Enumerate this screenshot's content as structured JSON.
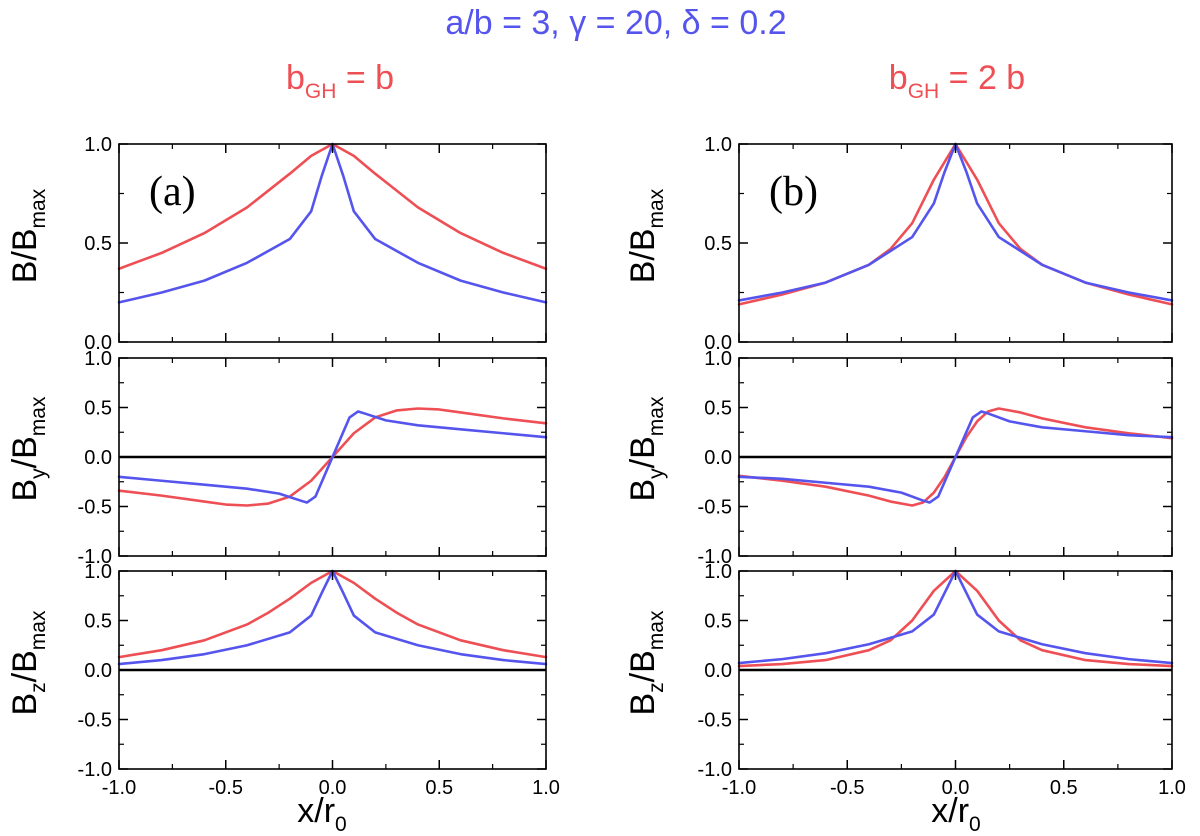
{
  "colors": {
    "blue": "#5555ee",
    "red": "#ee4f55",
    "axis": "#000000"
  },
  "title": {
    "lhs": "a/b",
    "eq1": " = 3, ",
    "gamma": "γ",
    "eq2": " = 20, ",
    "delta": "δ",
    "eq3": " = 0.2"
  },
  "columns": [
    {
      "base": "b",
      "sub": "GH",
      "rhs": " = b"
    },
    {
      "base": "b",
      "sub": "GH",
      "rhs": " = 2 b"
    }
  ],
  "ylabels": [
    {
      "base": "B",
      "sub": "",
      "rest": "/B",
      "sub2": "max"
    },
    {
      "base": "B",
      "sub": "y",
      "rest": "/B",
      "sub2": "max"
    },
    {
      "base": "B",
      "sub": "z",
      "rest": "/B",
      "sub2": "max"
    }
  ],
  "xlabel": {
    "base": "x/r",
    "sub": "0"
  },
  "panel_labels": [
    "(a)",
    "(b)"
  ],
  "chart_data": [
    {
      "type": "line",
      "column": 0,
      "row": 0,
      "title": "",
      "xlabel": "",
      "ylabel": "B/Bmax",
      "xlim": [
        -1.0,
        1.0
      ],
      "ylim": [
        0.0,
        1.0
      ],
      "yticks": [
        "0.0",
        "0.5",
        "1.0"
      ],
      "xticks": [
        "-1.0",
        "-0.5",
        "0.0",
        "0.5",
        "1.0"
      ],
      "show_xticklabels": false,
      "zero_line": false,
      "grid": false,
      "panel_label": "(a)",
      "series": [
        {
          "color": "red",
          "x": [
            -1.0,
            -0.8,
            -0.6,
            -0.4,
            -0.2,
            -0.1,
            0.0,
            0.1,
            0.2,
            0.4,
            0.6,
            0.8,
            1.0
          ],
          "y": [
            0.37,
            0.45,
            0.55,
            0.68,
            0.85,
            0.94,
            1.0,
            0.94,
            0.85,
            0.68,
            0.55,
            0.45,
            0.37
          ]
        },
        {
          "color": "blue",
          "x": [
            -1.0,
            -0.8,
            -0.6,
            -0.4,
            -0.2,
            -0.1,
            -0.05,
            0.0,
            0.05,
            0.1,
            0.2,
            0.4,
            0.6,
            0.8,
            1.0
          ],
          "y": [
            0.2,
            0.25,
            0.31,
            0.4,
            0.52,
            0.66,
            0.84,
            1.0,
            0.84,
            0.66,
            0.52,
            0.4,
            0.31,
            0.25,
            0.2
          ]
        }
      ]
    },
    {
      "type": "line",
      "column": 0,
      "row": 1,
      "title": "",
      "xlabel": "",
      "ylabel": "By/Bmax",
      "xlim": [
        -1.0,
        1.0
      ],
      "ylim": [
        -1.0,
        1.0
      ],
      "yticks": [
        "-1.0",
        "-0.5",
        "0.0",
        "0.5",
        "1.0"
      ],
      "xticks": [
        "-1.0",
        "-0.5",
        "0.0",
        "0.5",
        "1.0"
      ],
      "show_xticklabels": false,
      "zero_line": true,
      "grid": false,
      "series": [
        {
          "color": "red",
          "x": [
            -1.0,
            -0.8,
            -0.6,
            -0.5,
            -0.4,
            -0.3,
            -0.2,
            -0.1,
            0.0,
            0.1,
            0.2,
            0.3,
            0.4,
            0.5,
            0.6,
            0.8,
            1.0
          ],
          "y": [
            -0.34,
            -0.39,
            -0.45,
            -0.48,
            -0.49,
            -0.47,
            -0.4,
            -0.24,
            0.0,
            0.24,
            0.4,
            0.47,
            0.49,
            0.48,
            0.45,
            0.39,
            0.34
          ]
        },
        {
          "color": "blue",
          "x": [
            -1.0,
            -0.8,
            -0.6,
            -0.4,
            -0.25,
            -0.15,
            -0.12,
            -0.08,
            -0.04,
            0.0,
            0.04,
            0.08,
            0.12,
            0.15,
            0.25,
            0.4,
            0.6,
            0.8,
            1.0
          ],
          "y": [
            -0.2,
            -0.24,
            -0.28,
            -0.32,
            -0.37,
            -0.44,
            -0.46,
            -0.4,
            -0.2,
            0.0,
            0.2,
            0.4,
            0.46,
            0.44,
            0.37,
            0.32,
            0.28,
            0.24,
            0.2
          ]
        }
      ]
    },
    {
      "type": "line",
      "column": 0,
      "row": 2,
      "title": "",
      "ylabel": "Bz/Bmax",
      "xlabel": "x/r0",
      "xlim": [
        -1.0,
        1.0
      ],
      "ylim": [
        -1.0,
        1.0
      ],
      "yticks": [
        "-1.0",
        "-0.5",
        "0.0",
        "0.5",
        "1.0"
      ],
      "xticks": [
        "-1.0",
        "-0.5",
        "0.0",
        "0.5",
        "1.0"
      ],
      "show_xticklabels": true,
      "zero_line": true,
      "grid": false,
      "series": [
        {
          "color": "red",
          "x": [
            -1.0,
            -0.8,
            -0.6,
            -0.4,
            -0.3,
            -0.2,
            -0.1,
            0.0,
            0.1,
            0.2,
            0.3,
            0.4,
            0.6,
            0.8,
            1.0
          ],
          "y": [
            0.13,
            0.2,
            0.3,
            0.46,
            0.58,
            0.72,
            0.88,
            1.0,
            0.88,
            0.72,
            0.58,
            0.46,
            0.3,
            0.2,
            0.13
          ]
        },
        {
          "color": "blue",
          "x": [
            -1.0,
            -0.8,
            -0.6,
            -0.4,
            -0.2,
            -0.1,
            -0.05,
            0.0,
            0.05,
            0.1,
            0.2,
            0.4,
            0.6,
            0.8,
            1.0
          ],
          "y": [
            0.06,
            0.1,
            0.16,
            0.25,
            0.38,
            0.55,
            0.78,
            1.0,
            0.78,
            0.55,
            0.38,
            0.25,
            0.16,
            0.1,
            0.06
          ]
        }
      ]
    },
    {
      "type": "line",
      "column": 1,
      "row": 0,
      "title": "",
      "xlabel": "",
      "ylabel": "B/Bmax",
      "xlim": [
        -1.0,
        1.0
      ],
      "ylim": [
        0.0,
        1.0
      ],
      "yticks": [
        "0.0",
        "0.5",
        "1.0"
      ],
      "xticks": [
        "-1.0",
        "-0.5",
        "0.0",
        "0.5",
        "1.0"
      ],
      "show_xticklabels": false,
      "zero_line": false,
      "grid": false,
      "panel_label": "(b)",
      "series": [
        {
          "color": "red",
          "x": [
            -1.0,
            -0.8,
            -0.6,
            -0.4,
            -0.3,
            -0.2,
            -0.1,
            0.0,
            0.1,
            0.2,
            0.3,
            0.4,
            0.6,
            0.8,
            1.0
          ],
          "y": [
            0.19,
            0.24,
            0.3,
            0.39,
            0.47,
            0.6,
            0.82,
            1.0,
            0.82,
            0.6,
            0.47,
            0.39,
            0.3,
            0.24,
            0.19
          ]
        },
        {
          "color": "blue",
          "x": [
            -1.0,
            -0.8,
            -0.6,
            -0.4,
            -0.2,
            -0.1,
            -0.05,
            0.0,
            0.05,
            0.1,
            0.2,
            0.4,
            0.6,
            0.8,
            1.0
          ],
          "y": [
            0.21,
            0.25,
            0.3,
            0.39,
            0.53,
            0.7,
            0.86,
            1.0,
            0.86,
            0.7,
            0.53,
            0.39,
            0.3,
            0.25,
            0.21
          ]
        }
      ]
    },
    {
      "type": "line",
      "column": 1,
      "row": 1,
      "title": "",
      "xlabel": "",
      "ylabel": "By/Bmax",
      "xlim": [
        -1.0,
        1.0
      ],
      "ylim": [
        -1.0,
        1.0
      ],
      "yticks": [
        "-1.0",
        "-0.5",
        "0.0",
        "0.5",
        "1.0"
      ],
      "xticks": [
        "-1.0",
        "-0.5",
        "0.0",
        "0.5",
        "1.0"
      ],
      "show_xticklabels": false,
      "zero_line": true,
      "grid": false,
      "series": [
        {
          "color": "red",
          "x": [
            -1.0,
            -0.8,
            -0.6,
            -0.4,
            -0.3,
            -0.2,
            -0.15,
            -0.1,
            -0.05,
            0.0,
            0.05,
            0.1,
            0.15,
            0.2,
            0.3,
            0.4,
            0.6,
            0.8,
            1.0
          ],
          "y": [
            -0.19,
            -0.24,
            -0.3,
            -0.39,
            -0.45,
            -0.49,
            -0.46,
            -0.36,
            -0.2,
            0.0,
            0.2,
            0.36,
            0.46,
            0.49,
            0.45,
            0.39,
            0.3,
            0.24,
            0.19
          ]
        },
        {
          "color": "blue",
          "x": [
            -1.0,
            -0.8,
            -0.6,
            -0.4,
            -0.25,
            -0.15,
            -0.12,
            -0.08,
            -0.04,
            0.0,
            0.04,
            0.08,
            0.12,
            0.15,
            0.25,
            0.4,
            0.6,
            0.8,
            1.0
          ],
          "y": [
            -0.2,
            -0.22,
            -0.26,
            -0.3,
            -0.36,
            -0.44,
            -0.46,
            -0.4,
            -0.2,
            0.0,
            0.2,
            0.4,
            0.46,
            0.44,
            0.36,
            0.3,
            0.26,
            0.22,
            0.2
          ]
        }
      ]
    },
    {
      "type": "line",
      "column": 1,
      "row": 2,
      "title": "",
      "ylabel": "Bz/Bmax",
      "xlabel": "x/r0",
      "xlim": [
        -1.0,
        1.0
      ],
      "ylim": [
        -1.0,
        1.0
      ],
      "yticks": [
        "-1.0",
        "-0.5",
        "0.0",
        "0.5",
        "1.0"
      ],
      "xticks": [
        "-1.0",
        "-0.5",
        "0.0",
        "0.5",
        "1.0"
      ],
      "show_xticklabels": true,
      "zero_line": true,
      "grid": false,
      "series": [
        {
          "color": "red",
          "x": [
            -1.0,
            -0.8,
            -0.6,
            -0.4,
            -0.3,
            -0.2,
            -0.1,
            0.0,
            0.1,
            0.2,
            0.3,
            0.4,
            0.6,
            0.8,
            1.0
          ],
          "y": [
            0.04,
            0.06,
            0.1,
            0.2,
            0.3,
            0.5,
            0.8,
            1.0,
            0.8,
            0.5,
            0.3,
            0.2,
            0.1,
            0.06,
            0.04
          ]
        },
        {
          "color": "blue",
          "x": [
            -1.0,
            -0.8,
            -0.6,
            -0.4,
            -0.2,
            -0.1,
            -0.05,
            0.0,
            0.05,
            0.1,
            0.2,
            0.4,
            0.6,
            0.8,
            1.0
          ],
          "y": [
            0.07,
            0.11,
            0.17,
            0.26,
            0.39,
            0.56,
            0.78,
            1.0,
            0.78,
            0.56,
            0.39,
            0.26,
            0.17,
            0.11,
            0.07
          ]
        }
      ]
    }
  ]
}
